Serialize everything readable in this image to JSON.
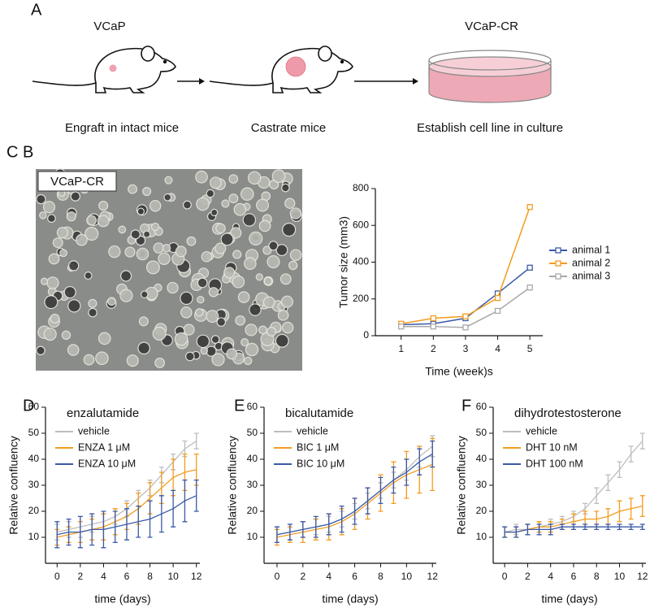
{
  "panel_a": {
    "label": "A",
    "left_title": "VCaP",
    "right_title": "VCaP-CR",
    "captions": [
      "Engraft in intact mice",
      "Castrate mice",
      "Establish cell line in culture"
    ]
  },
  "panel_b": {
    "label": "B",
    "image_label": "VCaP-CR"
  },
  "chart_data": [
    {
      "type": "line",
      "panel_label": "C",
      "xlabel": "Time (week)s",
      "ylabel": "Tumor size (mm3)",
      "x": [
        1,
        2,
        3,
        4,
        5
      ],
      "xlim": [
        0.2,
        5.4
      ],
      "xticks": [
        1,
        2,
        3,
        4,
        5
      ],
      "ylim": [
        0,
        800
      ],
      "yticks": [
        0,
        200,
        400,
        600,
        800
      ],
      "markers": true,
      "legend": "right",
      "series": [
        {
          "name": "animal 1",
          "color": "#3a5aa8",
          "values": [
            60,
            65,
            95,
            230,
            370
          ]
        },
        {
          "name": "animal 2",
          "color": "#f39c1f",
          "values": [
            65,
            95,
            105,
            205,
            700
          ]
        },
        {
          "name": "animal 3",
          "color": "#a8a8a8",
          "values": [
            50,
            50,
            45,
            135,
            262
          ]
        }
      ]
    },
    {
      "type": "line",
      "panel_label": "D",
      "title": "enzalutamide",
      "xlabel": "time (days)",
      "ylabel": "Relative confluency",
      "x": [
        0,
        1,
        2,
        3,
        4,
        5,
        6,
        7,
        8,
        9,
        10,
        11,
        12
      ],
      "xlim": [
        -1,
        12.3
      ],
      "xticks": [
        0,
        2,
        4,
        6,
        8,
        10,
        12
      ],
      "ylim": [
        0,
        60
      ],
      "yticks": [
        10,
        20,
        30,
        40,
        50,
        60
      ],
      "legend": "upper left",
      "series": [
        {
          "name": "vehicle",
          "color": "#bdbdbd",
          "values": [
            12,
            13,
            14,
            15,
            16,
            18,
            21,
            25,
            29,
            34,
            39,
            44,
            47
          ],
          "errors": [
            3,
            3,
            4,
            3,
            3,
            3,
            3,
            3,
            3,
            3,
            3,
            3,
            3
          ]
        },
        {
          "name": "ENZA 1 μM",
          "color": "#f39c1f",
          "values": [
            10,
            11,
            12,
            13,
            14,
            16,
            18,
            21,
            25,
            29,
            33,
            35,
            36
          ],
          "errors": [
            3,
            3,
            4,
            4,
            5,
            5,
            5,
            6,
            6,
            6,
            7,
            7,
            6
          ]
        },
        {
          "name": "ENZA 10 μM",
          "color": "#3a5aa8",
          "values": [
            11,
            12,
            12,
            13,
            13,
            14,
            15,
            16,
            17,
            19,
            21,
            24,
            26
          ],
          "errors": [
            5,
            5,
            6,
            6,
            7,
            6,
            6,
            6,
            7,
            7,
            7,
            8,
            6
          ]
        }
      ]
    },
    {
      "type": "line",
      "panel_label": "E",
      "title": "bicalutamide",
      "xlabel": "time (days)",
      "ylabel": "Relative confluency",
      "x": [
        0,
        1,
        2,
        3,
        4,
        5,
        6,
        7,
        8,
        9,
        10,
        11,
        12
      ],
      "xlim": [
        -1,
        12.3
      ],
      "xticks": [
        0,
        2,
        4,
        6,
        8,
        10,
        12
      ],
      "ylim": [
        0,
        60
      ],
      "yticks": [
        10,
        20,
        30,
        40,
        50,
        60
      ],
      "legend": "upper left",
      "series": [
        {
          "name": "vehicle",
          "color": "#bdbdbd",
          "values": [
            11,
            12,
            13,
            14,
            15,
            17,
            20,
            24,
            28,
            32,
            36,
            41,
            45
          ],
          "errors": [
            3,
            3,
            3,
            3,
            3,
            3,
            3,
            3,
            3,
            3,
            4,
            4,
            4
          ]
        },
        {
          "name": "BIC 1 μM",
          "color": "#f39c1f",
          "values": [
            10,
            11,
            12,
            13,
            14,
            16,
            19,
            23,
            27,
            31,
            34,
            36,
            38
          ],
          "errors": [
            3,
            3,
            4,
            4,
            5,
            5,
            6,
            6,
            7,
            8,
            9,
            9,
            10
          ]
        },
        {
          "name": "BIC 10 μM",
          "color": "#3a5aa8",
          "values": [
            11,
            12,
            13,
            14,
            15,
            17,
            20,
            24,
            28,
            32,
            35,
            39,
            42
          ],
          "errors": [
            3,
            3,
            3,
            4,
            4,
            5,
            5,
            5,
            5,
            5,
            5,
            5,
            5
          ]
        }
      ]
    },
    {
      "type": "line",
      "panel_label": "F",
      "title": "dihydrotestosterone",
      "xlabel": "time (days)",
      "ylabel": "Relative confluency",
      "x": [
        0,
        1,
        2,
        3,
        4,
        5,
        6,
        7,
        8,
        9,
        10,
        11,
        12
      ],
      "xlim": [
        -1,
        12.3
      ],
      "xticks": [
        0,
        2,
        4,
        6,
        8,
        10,
        12
      ],
      "ylim": [
        0,
        60
      ],
      "yticks": [
        10,
        20,
        30,
        40,
        50,
        60
      ],
      "legend": "upper left",
      "series": [
        {
          "name": "vehicle",
          "color": "#bdbdbd",
          "values": [
            12,
            13,
            13,
            14,
            15,
            16,
            18,
            21,
            26,
            31,
            36,
            42,
            47
          ],
          "errors": [
            2,
            2,
            2,
            2,
            2,
            2,
            2,
            2,
            3,
            3,
            3,
            3,
            3
          ]
        },
        {
          "name": "DHT 10 nM",
          "color": "#f39c1f",
          "values": [
            12,
            12,
            13,
            14,
            14,
            15,
            16,
            17,
            17,
            18,
            20,
            21,
            22
          ],
          "errors": [
            2,
            2,
            2,
            2,
            2,
            2,
            3,
            3,
            3,
            3,
            4,
            4,
            4
          ]
        },
        {
          "name": "DHT 100 nM",
          "color": "#3a5aa8",
          "values": [
            12,
            12,
            13,
            13,
            13,
            14,
            14,
            14,
            14,
            14,
            14,
            14,
            14
          ],
          "errors": [
            2,
            2,
            2,
            2,
            2,
            1,
            1,
            1,
            1,
            1,
            1,
            1,
            1
          ]
        }
      ]
    }
  ]
}
